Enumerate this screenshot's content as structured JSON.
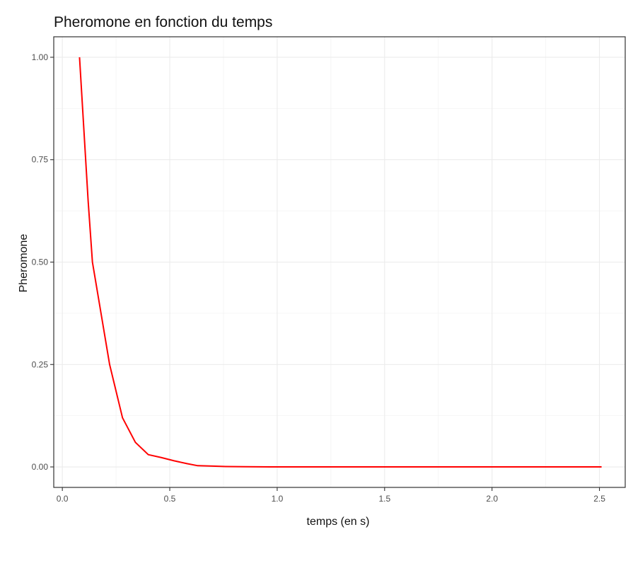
{
  "chart_data": {
    "type": "line",
    "title": "Pheromone en fonction du temps",
    "xlabel": "temps (en s)",
    "ylabel": "Pheromone",
    "xlim": [
      -0.04,
      2.62
    ],
    "ylim": [
      -0.05,
      1.0
    ],
    "x_ticks": [
      0.0,
      0.5,
      1.0,
      1.5,
      2.0,
      2.5
    ],
    "x_tick_labels": [
      "0.0",
      "0.5",
      "1.0",
      "1.5",
      "2.0",
      "2.5"
    ],
    "y_ticks": [
      0.0,
      0.25,
      0.5,
      0.75,
      1.0
    ],
    "y_tick_labels": [
      "0.00",
      "0.25",
      "0.50",
      "0.75",
      "1.00"
    ],
    "grid": true,
    "series": [
      {
        "color": "#ff0000",
        "x": [
          0.08,
          0.12,
          0.14,
          0.18,
          0.22,
          0.28,
          0.34,
          0.4,
          0.46,
          0.52,
          0.58,
          0.63,
          0.7,
          0.76,
          0.85,
          1.0,
          1.25,
          1.5,
          1.75,
          2.0,
          2.25,
          2.51
        ],
        "y": [
          1.0,
          0.65,
          0.5,
          0.375,
          0.25,
          0.12,
          0.06,
          0.03,
          0.023,
          0.015,
          0.008,
          0.003,
          0.002,
          0.001,
          0.0005,
          0.0,
          0.0,
          0.0,
          0.0,
          0.0,
          0.0,
          0.0
        ]
      }
    ]
  }
}
